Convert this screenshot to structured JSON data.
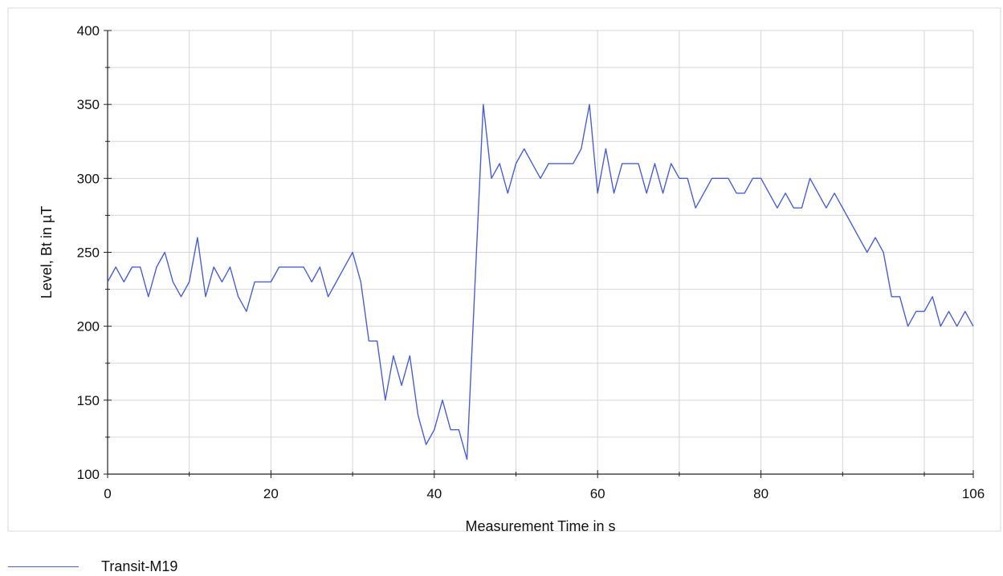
{
  "chart_data": {
    "type": "line",
    "title": "",
    "xlabel": "Measurement Time in s",
    "ylabel": "Level, Bt in µT",
    "xlim": [
      0,
      106
    ],
    "ylim": [
      100,
      400
    ],
    "x_ticks": [
      0,
      20,
      40,
      60,
      80,
      106
    ],
    "x_tick_labels": [
      "0",
      "20",
      "40",
      "60",
      "80",
      "106"
    ],
    "x_minor_ticks": [
      10,
      30,
      50,
      70,
      90,
      100
    ],
    "y_ticks": [
      100,
      150,
      200,
      250,
      300,
      350,
      400
    ],
    "y_tick_labels": [
      "100",
      "150",
      "200",
      "250",
      "300",
      "350",
      "400"
    ],
    "y_minor_ticks": [
      125,
      175,
      225,
      275,
      325,
      375
    ],
    "grid": true,
    "legend_position": "bottom-left",
    "series": [
      {
        "name": "Transit-M19",
        "color": "#4a5fd6",
        "x": [
          0,
          1,
          2,
          3,
          4,
          5,
          6,
          7,
          8,
          9,
          10,
          11,
          12,
          13,
          14,
          15,
          16,
          17,
          18,
          19,
          20,
          21,
          22,
          23,
          24,
          25,
          26,
          27,
          28,
          29,
          30,
          31,
          32,
          33,
          34,
          35,
          36,
          37,
          38,
          39,
          40,
          41,
          42,
          43,
          44,
          45,
          46,
          47,
          48,
          49,
          50,
          51,
          52,
          53,
          54,
          55,
          56,
          57,
          58,
          59,
          60,
          61,
          62,
          63,
          64,
          65,
          66,
          67,
          68,
          69,
          70,
          71,
          72,
          73,
          74,
          75,
          76,
          77,
          78,
          79,
          80,
          81,
          82,
          83,
          84,
          85,
          86,
          87,
          88,
          89,
          90,
          91,
          92,
          93,
          94,
          95,
          96,
          97,
          98,
          99,
          100,
          101,
          102,
          103,
          104,
          105,
          106
        ],
        "y": [
          230,
          240,
          230,
          240,
          240,
          220,
          240,
          250,
          230,
          220,
          230,
          260,
          220,
          240,
          230,
          240,
          220,
          210,
          230,
          230,
          230,
          240,
          240,
          240,
          240,
          230,
          240,
          220,
          230,
          240,
          250,
          230,
          190,
          190,
          150,
          180,
          160,
          180,
          140,
          120,
          130,
          150,
          130,
          130,
          110,
          230,
          350,
          300,
          310,
          290,
          310,
          320,
          310,
          300,
          310,
          310,
          310,
          310,
          320,
          350,
          290,
          320,
          290,
          310,
          310,
          310,
          290,
          310,
          290,
          310,
          300,
          300,
          280,
          290,
          300,
          300,
          300,
          290,
          290,
          300,
          300,
          290,
          280,
          290,
          280,
          280,
          300,
          290,
          280,
          290,
          280,
          270,
          260,
          250,
          260,
          250,
          220,
          220,
          200,
          210,
          210,
          220,
          200,
          210,
          200,
          210,
          200
        ]
      }
    ]
  }
}
